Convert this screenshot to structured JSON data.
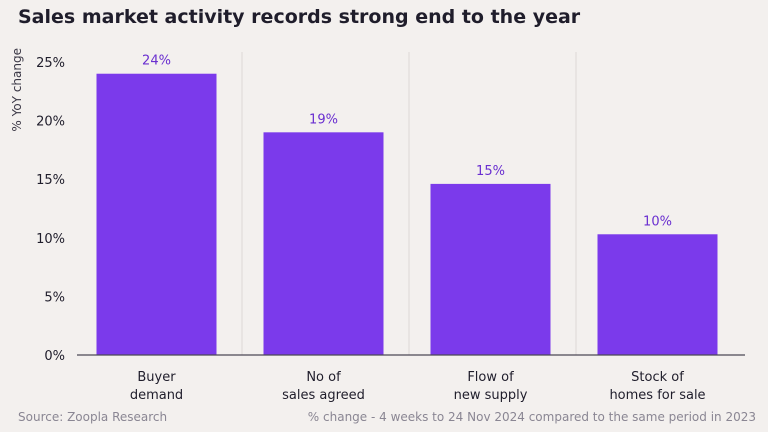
{
  "title": "Sales market activity records strong end to the year",
  "source": "Source: Zoopla Research",
  "note": "% change - 4 weeks to 24 Nov 2024 compared to the same period in 2023",
  "colors": {
    "bar": "#7b3aeb",
    "data_label": "#6a2fd0",
    "grid": "#dcd8d6",
    "axis": "#4b4856",
    "text": "#1f1d2b",
    "background": "#f3f0ee"
  },
  "chart_data": {
    "type": "bar",
    "categories": [
      [
        "Buyer",
        "demand"
      ],
      [
        "No of",
        "sales agreed"
      ],
      [
        "Flow of",
        "new supply"
      ],
      [
        "Stock of",
        "homes for sale"
      ]
    ],
    "values": [
      24,
      19,
      14.6,
      10.3
    ],
    "data_labels": [
      "24%",
      "19%",
      "15%",
      "10%"
    ],
    "ylabel": "% YoY change",
    "xlabel": "",
    "ylim": [
      0,
      25
    ],
    "yticks": [
      0,
      5,
      10,
      15,
      20,
      25
    ],
    "ytick_labels": [
      "0%",
      "5%",
      "10%",
      "15%",
      "20%",
      "25%"
    ],
    "grid": "vertical separators between categories"
  }
}
